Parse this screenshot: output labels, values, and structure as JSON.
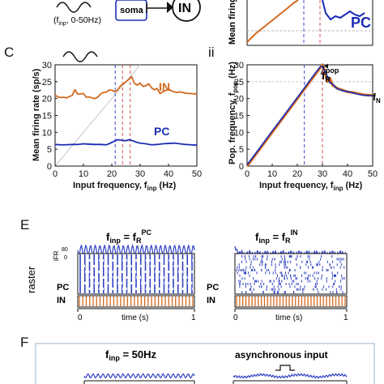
{
  "top": {
    "input_label": "(f",
    "input_sub": "inp",
    "input_range": ", 0-50Hz)",
    "soma_label": "soma",
    "in_label": "IN",
    "right_pc": "PC",
    "right_ylabel": "Mean firing"
  },
  "panel_letters": {
    "C": "C",
    "ii": "ii",
    "E": "E",
    "F": "F"
  },
  "chart_data": [
    {
      "id": "C-i",
      "type": "line",
      "ylabel": "Mean firing rate (sp/s)",
      "xlabel_main": "Input frequency, f",
      "xlabel_sub": "inp",
      "xlabel_unit": " (Hz)",
      "xlim": [
        0,
        50
      ],
      "ylim": [
        0,
        30
      ],
      "xticks": [
        "0",
        "10",
        "20",
        "30",
        "40",
        "50"
      ],
      "yticks": [
        "0",
        "5",
        "10",
        "15",
        "20",
        "25",
        "30"
      ],
      "series": [
        {
          "name": "IN",
          "color": "#d2691e",
          "x": [
            0,
            1,
            2,
            3,
            4,
            5,
            6,
            7,
            8,
            9,
            10,
            11,
            12,
            13,
            14,
            15,
            16,
            17,
            18,
            19,
            20,
            21,
            22,
            23,
            24,
            25,
            26,
            27,
            28,
            29,
            30,
            31,
            32,
            33,
            34,
            35,
            36,
            37,
            38,
            39,
            40,
            41,
            42,
            43,
            44,
            45,
            46,
            47,
            48,
            49,
            50
          ],
          "y": [
            21,
            20.5,
            20.3,
            20.4,
            20.2,
            20.6,
            20.9,
            22.6,
            21.3,
            21.4,
            21.5,
            20.4,
            20.5,
            20.2,
            20.0,
            20.4,
            21.3,
            21.8,
            21.9,
            22.5,
            22.5,
            22.0,
            22.5,
            23.7,
            24.3,
            25.0,
            25.7,
            26.5,
            24.5,
            24.0,
            24.6,
            23.6,
            23.8,
            24.4,
            23.2,
            22.6,
            23.0,
            21.5,
            22.0,
            22.4,
            22.8,
            22.3,
            22.0,
            21.8,
            22.0,
            21.8,
            21.6,
            21.5,
            21.5,
            21.4,
            21.4
          ]
        },
        {
          "name": "PC",
          "color": "#1a2db5",
          "x": [
            0,
            2,
            4,
            6,
            8,
            10,
            12,
            14,
            16,
            18,
            19,
            20,
            21,
            22,
            23,
            24,
            25,
            26,
            27,
            28,
            29,
            30,
            32,
            34,
            36,
            38,
            40,
            42,
            44,
            46,
            48,
            50
          ],
          "y": [
            6.4,
            6.3,
            6.3,
            6.4,
            6.4,
            6.6,
            6.5,
            6.4,
            6.4,
            6.3,
            6.6,
            7.0,
            7.4,
            7.8,
            7.7,
            7.6,
            7.5,
            7.8,
            7.6,
            7.3,
            7.0,
            6.8,
            6.6,
            6.3,
            6.4,
            6.6,
            6.7,
            6.8,
            6.6,
            6.4,
            6.3,
            6.2
          ]
        }
      ],
      "reference_line": {
        "x": [
          0,
          30
        ],
        "y": [
          0,
          30
        ]
      },
      "vlines": [
        {
          "x": 21.2,
          "color": "#3b4bd1"
        },
        {
          "x": 23.8,
          "color": "#d45050"
        },
        {
          "x": 26.5,
          "color": "#d45050"
        }
      ]
    },
    {
      "id": "C-ii",
      "type": "line",
      "ylabel_main": "Pop. frequency, f",
      "ylabel_sub": "pop",
      "ylabel_unit": " (Hz)",
      "xlabel_main": "Input frequency, f",
      "xlabel_sub": "inp",
      "xlabel_unit": " (Hz)",
      "xlim": [
        0,
        50
      ],
      "ylim": [
        0,
        30
      ],
      "xticks": [
        "0",
        "10",
        "20",
        "30",
        "40",
        "50"
      ],
      "yticks": [
        "0",
        "5",
        "10",
        "15",
        "20",
        "25",
        "30"
      ],
      "annotation_main": "f",
      "annotation_sub": "R",
      "annotation_sup": "pop",
      "right_label_main": "f",
      "right_label_sub": "N",
      "series": [
        {
          "name": "",
          "color": "#d2691e",
          "x": [
            0,
            5,
            10,
            15,
            20,
            25,
            28,
            29,
            30,
            31,
            32,
            33,
            34,
            35,
            36,
            38,
            40,
            42,
            44,
            46,
            48,
            50
          ],
          "y": [
            0,
            5,
            10,
            15,
            20,
            25,
            28,
            29,
            30,
            28,
            25,
            26,
            24,
            23.5,
            23,
            22.5,
            22,
            21.8,
            21.5,
            21.2,
            21.0,
            21.0
          ]
        },
        {
          "name": "",
          "color": "#1a2db5",
          "x": [
            0,
            5,
            10,
            15,
            20,
            25,
            28,
            29,
            30,
            31,
            32,
            33,
            34,
            35,
            36,
            38,
            40,
            42,
            44,
            46,
            48,
            50
          ],
          "y": [
            0.4,
            5.3,
            10.4,
            15.3,
            20.3,
            25.4,
            28.4,
            29.3,
            29.6,
            28.2,
            26.5,
            24.6,
            24.4,
            23.5,
            22.9,
            22.3,
            22.1,
            21.7,
            21.3,
            21.0,
            20.9,
            20.8
          ]
        }
      ],
      "hline": 25,
      "vlines": [
        {
          "x": 22.8,
          "color": "#3b4bd1"
        },
        {
          "x": 30.0,
          "color": "#d45050"
        }
      ]
    }
  ],
  "panelE": {
    "left_title_main": "f",
    "left_title_sub": "inp",
    "left_title_eq": " = f",
    "left_title_sub2": "R",
    "left_title_sup2": "PC",
    "right_title_main": "f",
    "right_title_sub": "inp",
    "right_title_eq": " = f",
    "right_title_sub2": "R",
    "right_title_sup2": "IN",
    "ifr_label": "iFR",
    "ifr_tick_top": "80",
    "ifr_tick_bottom": "0",
    "raster_label": "raster",
    "pc_label": "PC",
    "in_label": "IN",
    "xaxis_label": "time (s)",
    "tick0": "0",
    "tick1": "1"
  },
  "panelF": {
    "left_title_main": "f",
    "left_title_sub": "inp",
    "left_title_eq": " = 50Hz",
    "right_title": "asynchronous input"
  },
  "colors": {
    "orange": "#d2691e",
    "blue": "#1a2db5",
    "raster_blue": "#2d3fc0",
    "grid_ref": "#bbbbbb"
  }
}
